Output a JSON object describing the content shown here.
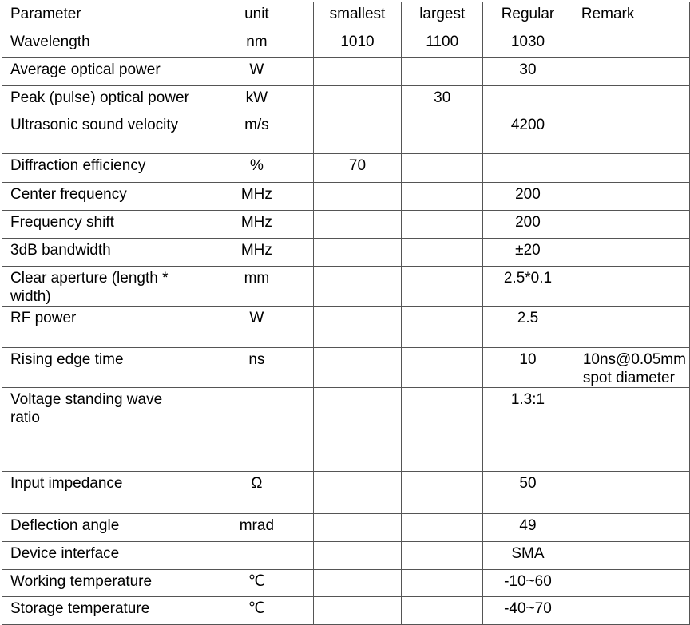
{
  "table": {
    "headers": [
      "Parameter",
      "unit",
      "smallest",
      "largest",
      "Regular",
      "Remark"
    ],
    "rows": [
      [
        "Wavelength",
        "nm",
        "1010",
        "1100",
        "1030",
        ""
      ],
      [
        "Average optical power",
        "W",
        "",
        "",
        "30",
        ""
      ],
      [
        "Peak (pulse) optical power",
        "kW",
        "",
        "30",
        "",
        ""
      ],
      [
        "Ultrasonic sound velocity",
        "m/s",
        "",
        "",
        "4200",
        ""
      ],
      [
        "Diffraction efficiency",
        "%",
        "70",
        "",
        "",
        ""
      ],
      [
        "Center frequency",
        "MHz",
        "",
        "",
        "200",
        ""
      ],
      [
        "Frequency shift",
        "MHz",
        "",
        "",
        "200",
        ""
      ],
      [
        "3dB bandwidth",
        "MHz",
        "",
        "",
        "±20",
        ""
      ],
      [
        "Clear aperture (length * width)",
        "mm",
        "",
        "",
        "2.5*0.1",
        ""
      ],
      [
        "RF power",
        "W",
        "",
        "",
        "2.5",
        ""
      ],
      [
        "Rising edge time",
        "ns",
        "",
        "",
        "10",
        "10ns@0.05mm spot diameter"
      ],
      [
        "Voltage standing wave ratio",
        "",
        "",
        "",
        "1.3:1",
        ""
      ],
      [
        "Input impedance",
        "Ω",
        "",
        "",
        "50",
        ""
      ],
      [
        "Deflection angle",
        "mrad",
        "",
        "",
        "49",
        ""
      ],
      [
        "Device interface",
        "",
        "",
        "",
        "SMA",
        ""
      ],
      [
        "Working temperature",
        "℃",
        "",
        "",
        "-10~60",
        ""
      ],
      [
        "Storage temperature",
        "℃",
        "",
        "",
        "-40~70",
        ""
      ]
    ]
  }
}
